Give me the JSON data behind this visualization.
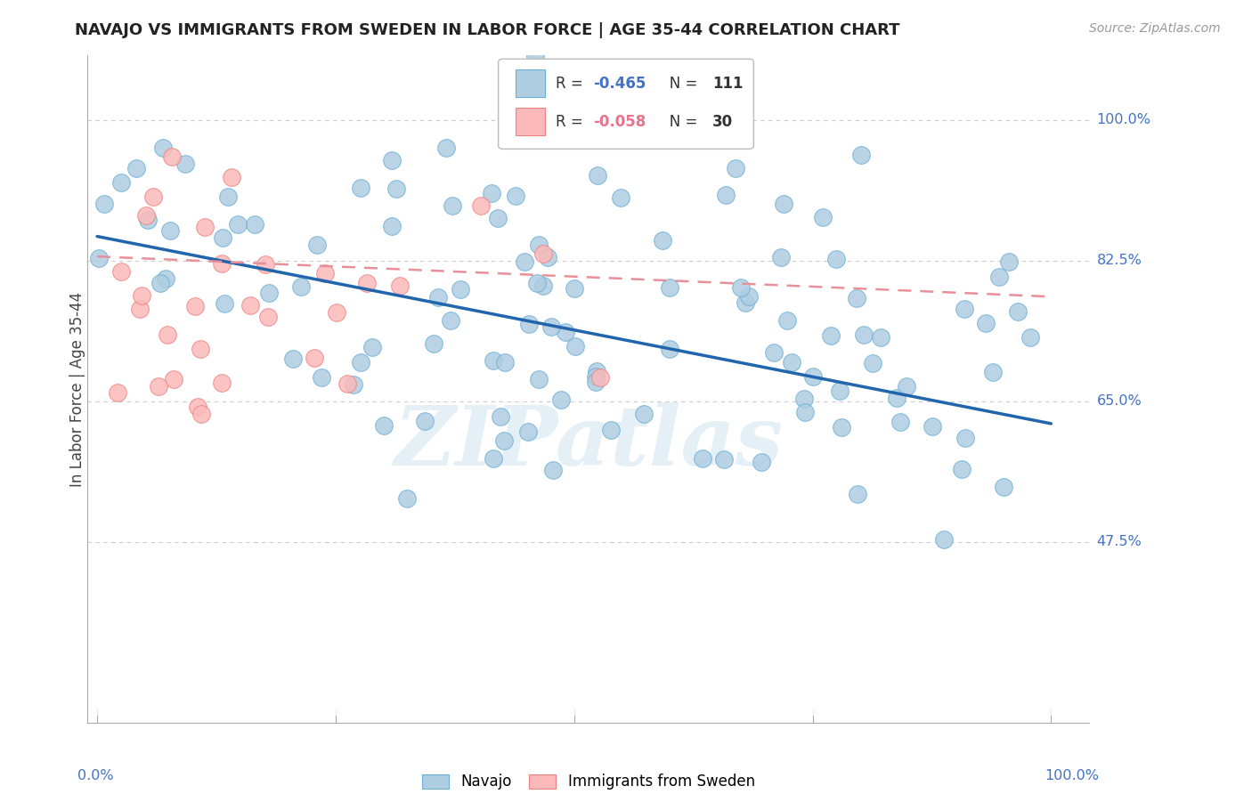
{
  "title": "NAVAJO VS IMMIGRANTS FROM SWEDEN IN LABOR FORCE | AGE 35-44 CORRELATION CHART",
  "source": "Source: ZipAtlas.com",
  "ylabel": "In Labor Force | Age 35-44",
  "navajo_R": -0.465,
  "navajo_N": 111,
  "sweden_R": -0.058,
  "sweden_N": 30,
  "navajo_color": "#aecde1",
  "navajo_edge": "#6baed6",
  "sweden_color": "#fcb9b9",
  "sweden_edge": "#f08080",
  "navajo_line_color": "#2166ac",
  "sweden_line_color": "#e8909a",
  "watermark": "ZIPatlas",
  "ytick_values": [
    0.475,
    0.65,
    0.825,
    1.0
  ],
  "ytick_labels": [
    "47.5%",
    "65.0%",
    "82.5%",
    "100.0%"
  ],
  "ylim_min": 0.25,
  "ylim_max": 1.08,
  "xlim_min": -0.01,
  "xlim_max": 1.04
}
